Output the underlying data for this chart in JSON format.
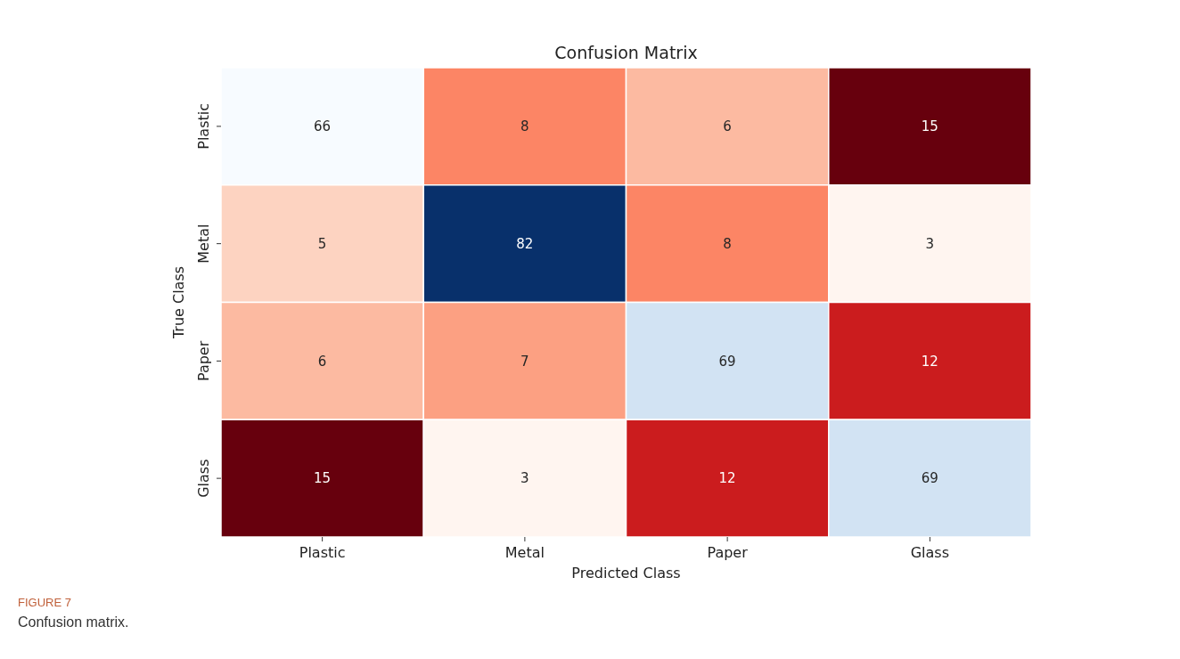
{
  "chart_data": {
    "type": "heatmap",
    "title": "Confusion Matrix",
    "xlabel": "Predicted Class",
    "ylabel": "True Class",
    "categories": [
      "Plastic",
      "Metal",
      "Paper",
      "Glass"
    ],
    "y_categories": [
      "Plastic",
      "Metal",
      "Paper",
      "Glass"
    ],
    "cells": [
      [
        66,
        8,
        6,
        15
      ],
      [
        5,
        82,
        8,
        3
      ],
      [
        6,
        7,
        69,
        12
      ],
      [
        15,
        3,
        12,
        69
      ]
    ],
    "data_labels": true,
    "annotations": [
      "FIGURE 7",
      "Confusion matrix."
    ]
  }
}
